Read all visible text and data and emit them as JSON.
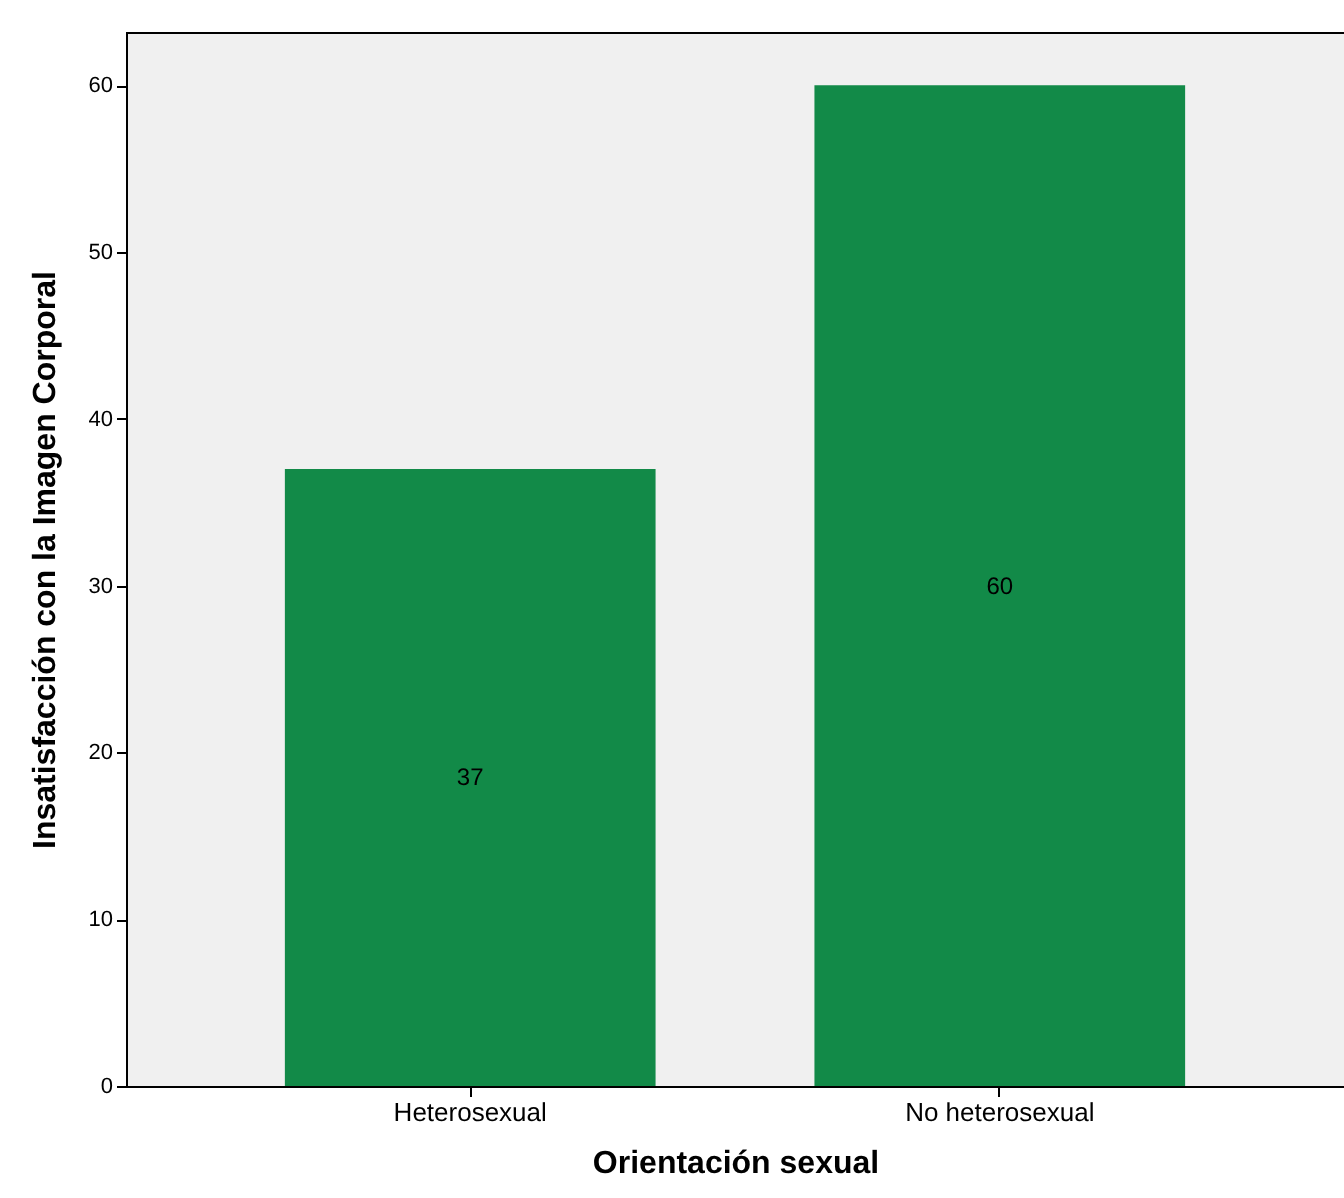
{
  "chart_data": {
    "type": "bar",
    "xlabel": "Orientación sexual",
    "ylabel": "Insatisfacción con la Imagen Corporal",
    "categories": [
      "Heterosexual",
      "No heterosexual"
    ],
    "values": [
      37,
      60
    ],
    "color": "#128a48",
    "ylim": [
      0,
      63.2
    ],
    "yticks": [
      0,
      10,
      20,
      30,
      40,
      50,
      60
    ],
    "grid": false,
    "data_labels": true
  }
}
